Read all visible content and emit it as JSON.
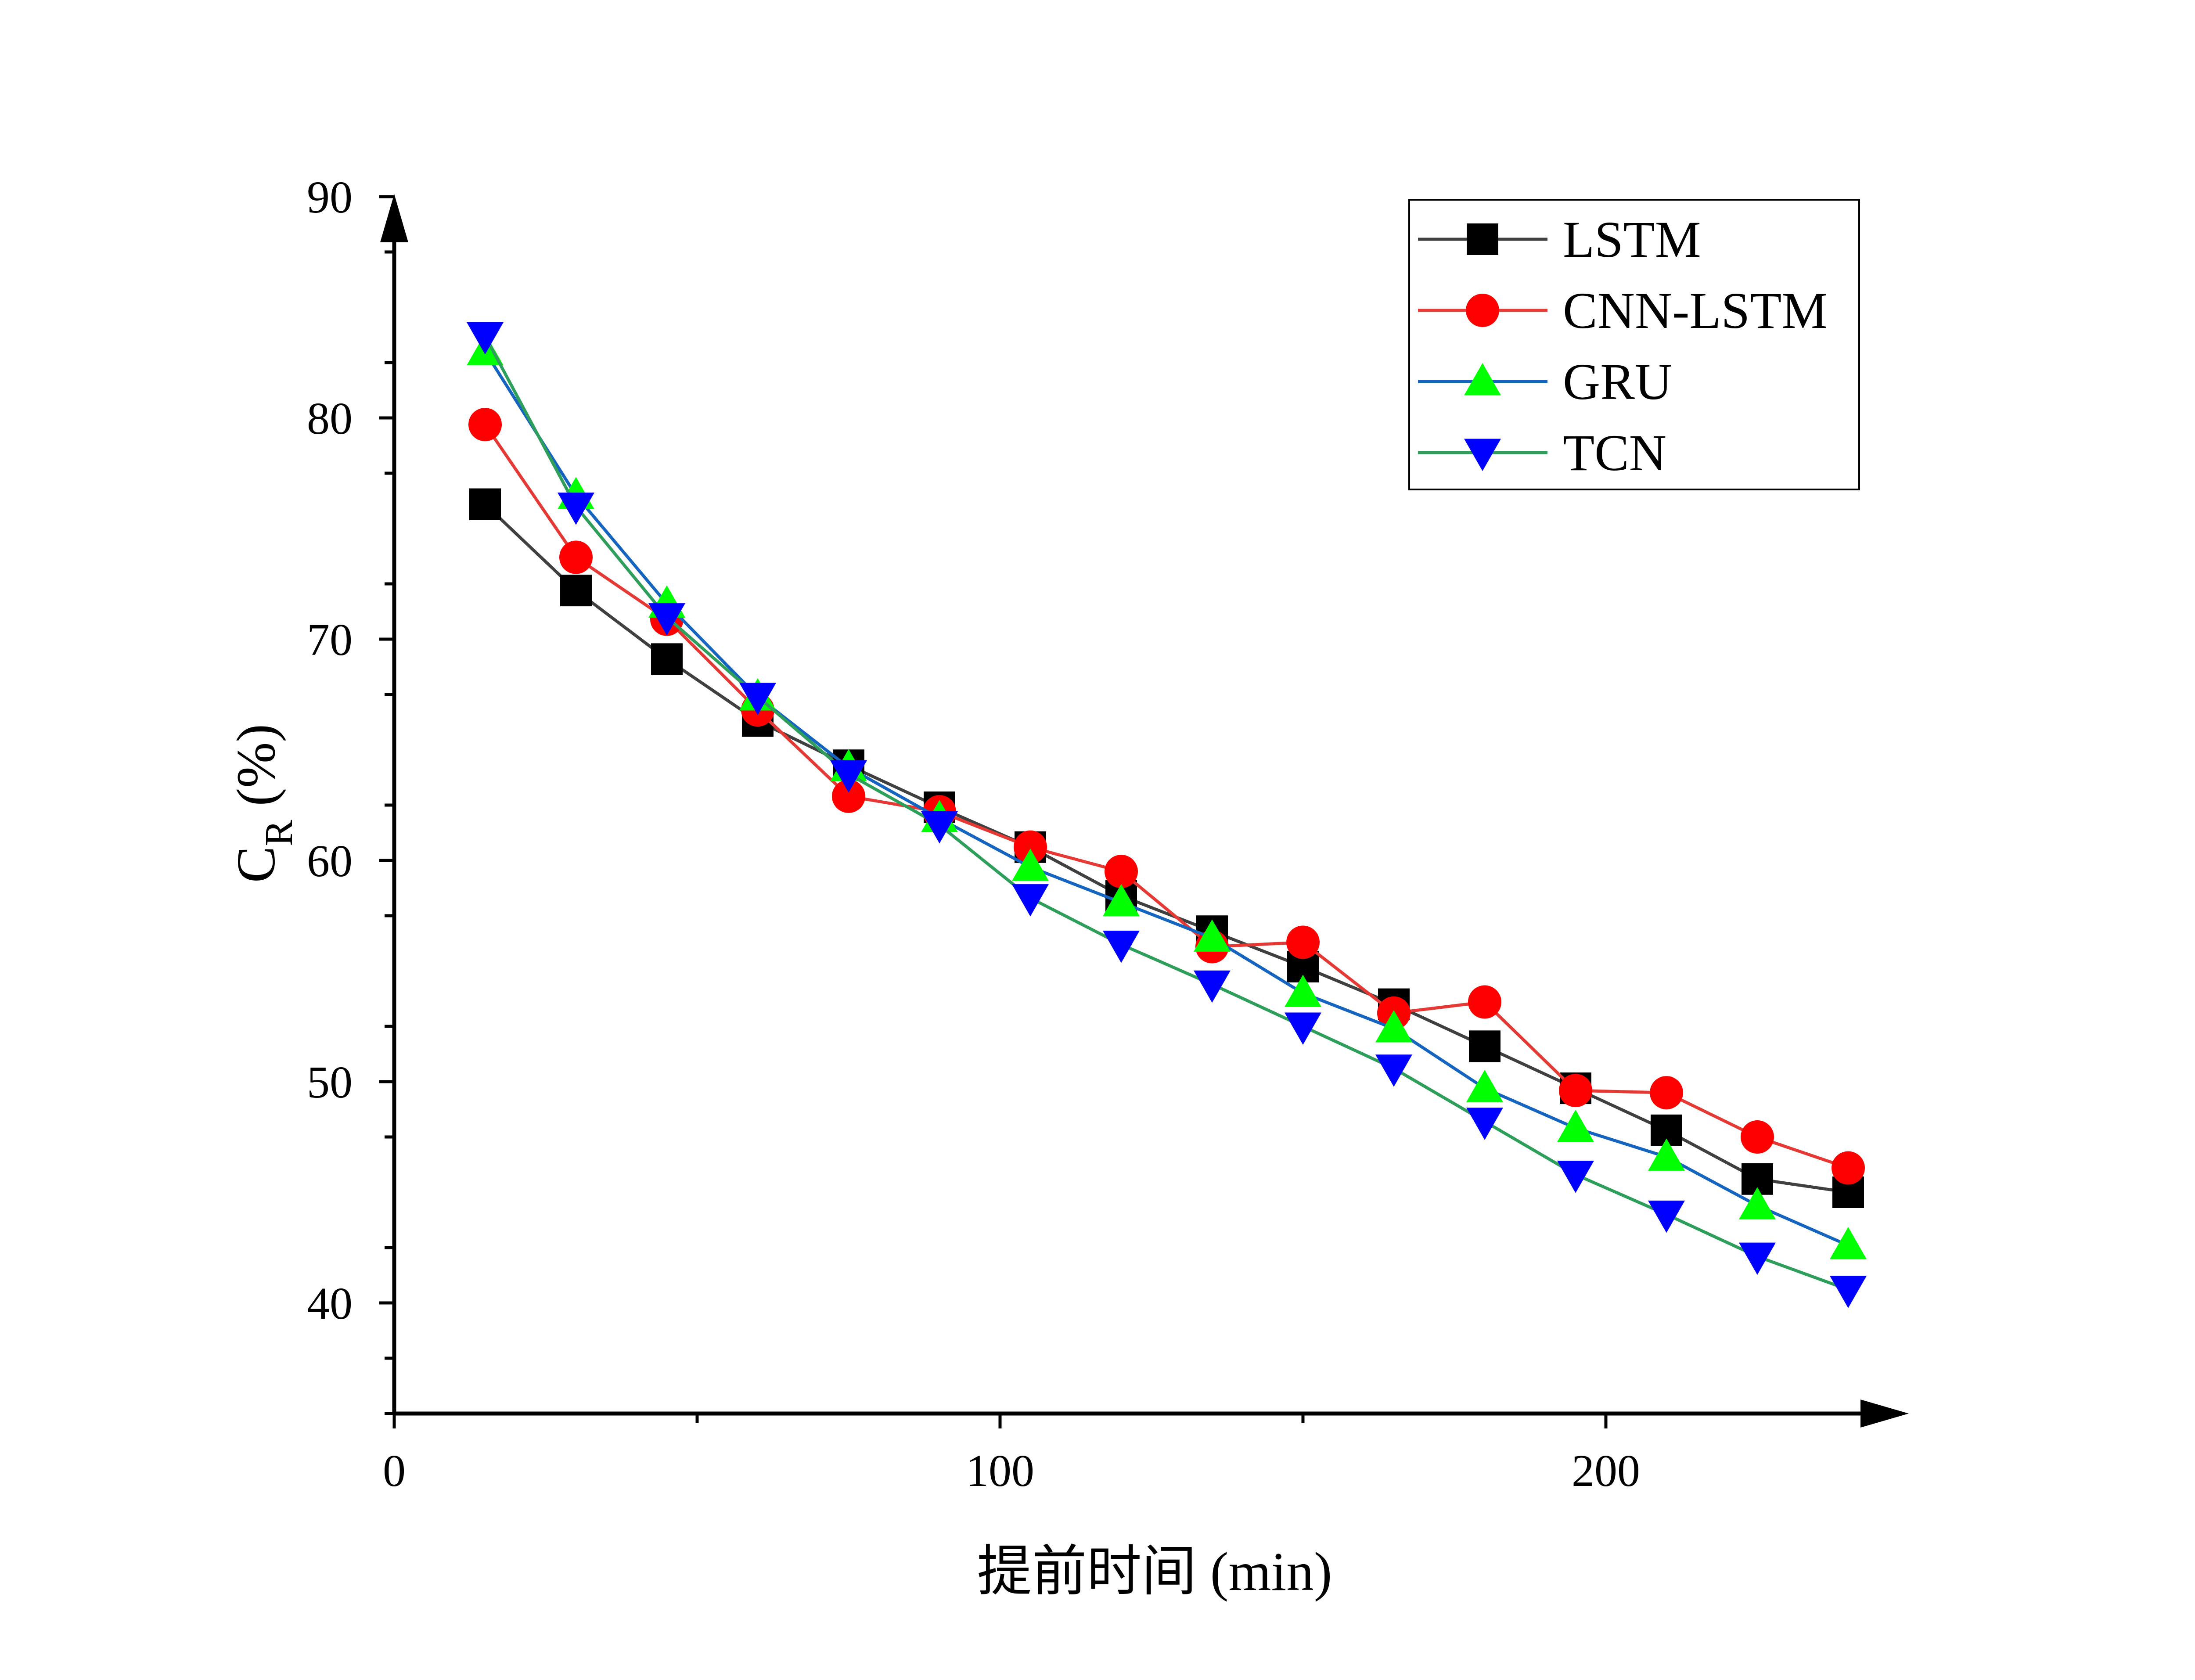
{
  "chart_data": {
    "type": "line",
    "title": "",
    "xlabel": "提前时间 (min)",
    "ylabel": {
      "main": "C",
      "subscript": "R",
      "suffix": " (%)"
    },
    "xlim": [
      0,
      250
    ],
    "ylim": [
      35,
      90
    ],
    "xticks": [
      0,
      100,
      200
    ],
    "yticks": [
      40,
      50,
      60,
      70,
      80,
      90
    ],
    "x": [
      15,
      30,
      45,
      60,
      75,
      90,
      105,
      120,
      135,
      150,
      165,
      180,
      195,
      210,
      225,
      240
    ],
    "legend_position": "top-right",
    "series": [
      {
        "name": "LSTM",
        "line_color": "#404040",
        "marker_color": "#000000",
        "marker": "square",
        "values": [
          76.1,
          72.2,
          69.1,
          66.3,
          64.3,
          62.4,
          60.6,
          58.4,
          56.8,
          55.2,
          53.5,
          51.6,
          49.7,
          47.8,
          45.6,
          45.0
        ]
      },
      {
        "name": "CNN-LSTM",
        "line_color": "#e53935",
        "marker_color": "#ff0000",
        "marker": "circle",
        "values": [
          79.7,
          73.7,
          70.9,
          66.8,
          62.9,
          62.2,
          60.6,
          59.5,
          56.1,
          56.3,
          53.1,
          53.6,
          49.6,
          49.5,
          47.5,
          46.1
        ]
      },
      {
        "name": "GRU",
        "line_color": "#1565c0",
        "marker_color": "#00ff00",
        "marker": "triangle-up",
        "values": [
          83.0,
          76.5,
          71.6,
          67.4,
          64.2,
          61.9,
          59.7,
          58.1,
          56.5,
          54.0,
          52.4,
          49.7,
          47.9,
          46.6,
          44.4,
          42.6
        ]
      },
      {
        "name": "TCN",
        "line_color": "#2e9e5b",
        "marker_color": "#0000ff",
        "marker": "triangle-down",
        "values": [
          83.7,
          76.0,
          71.0,
          67.4,
          63.9,
          61.6,
          58.3,
          56.2,
          54.4,
          52.5,
          50.6,
          48.2,
          45.8,
          44.0,
          42.1,
          40.6
        ]
      }
    ]
  }
}
